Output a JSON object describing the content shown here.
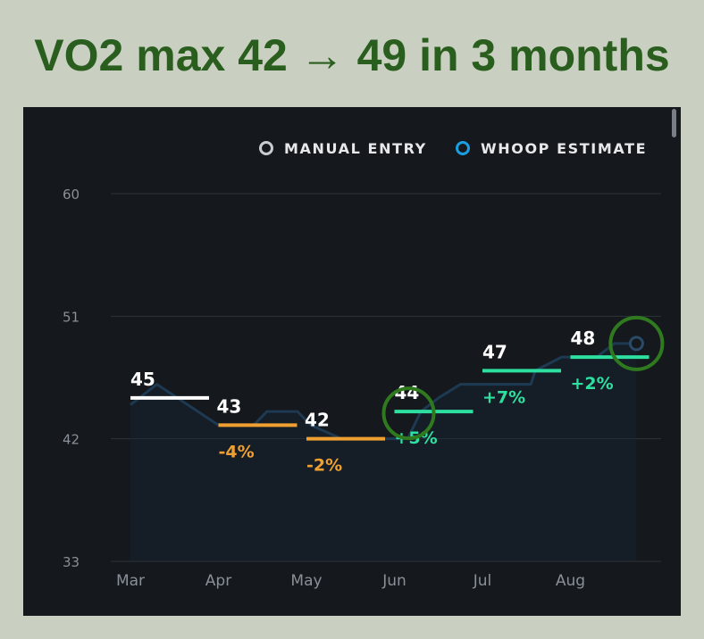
{
  "headline": "VO2 max 42 → 49 in 3 months",
  "legend": {
    "manual_label": "MANUAL ENTRY",
    "whoop_label": "WHOOP ESTIMATE"
  },
  "colors": {
    "background": "#c9d0c1",
    "headline": "#2a5e1e",
    "panel": "#15181c",
    "manual_entry": "#ffffff",
    "decline": "#f0a030",
    "increase": "#2de0a0",
    "estimate_line": "#1d3a52",
    "highlight_circle": "#2f7a1e"
  },
  "chart_data": {
    "type": "line",
    "categories": [
      "Mar",
      "Apr",
      "May",
      "Jun",
      "Jul",
      "Aug"
    ],
    "ylim": [
      33,
      60
    ],
    "yticks": [
      "33",
      "42",
      "51",
      "60"
    ],
    "grid": true,
    "legend_position": "top-right",
    "monthly": [
      {
        "month": "Mar",
        "value": 45,
        "label": "45",
        "change": "",
        "direction": "manual"
      },
      {
        "month": "Apr",
        "value": 43,
        "label": "43",
        "change": "-4%",
        "direction": "down"
      },
      {
        "month": "May",
        "value": 42,
        "label": "42",
        "change": "-2%",
        "direction": "down"
      },
      {
        "month": "Jun",
        "value": 44,
        "label": "44",
        "change": "+5%",
        "direction": "up"
      },
      {
        "month": "Jul",
        "value": 47,
        "label": "47",
        "change": "+7%",
        "direction": "up"
      },
      {
        "month": "Aug",
        "value": 48,
        "label": "48",
        "change": "+2%",
        "direction": "up"
      }
    ],
    "estimate_series": {
      "x": [
        0.0,
        0.3,
        1.0,
        1.4,
        1.55,
        1.9,
        2.05,
        2.4,
        2.75,
        3.0,
        3.15,
        3.3,
        3.5,
        3.75,
        4.05,
        4.25,
        4.55,
        4.6,
        4.9,
        5.3,
        5.5,
        5.75
      ],
      "y": [
        44.5,
        46.0,
        43.0,
        43.0,
        44.0,
        44.0,
        43.0,
        42.0,
        42.0,
        42.0,
        42.0,
        44.0,
        45.0,
        46.0,
        46.0,
        46.0,
        46.0,
        47.0,
        48.0,
        48.0,
        49.0,
        49.0
      ]
    },
    "latest_point": {
      "x": 5.75,
      "y": 49
    }
  }
}
